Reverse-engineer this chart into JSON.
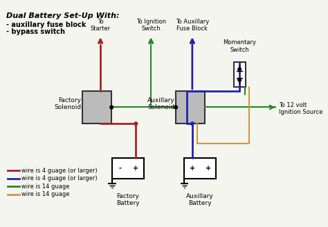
{
  "title": "Dual Battery Set-Up With:",
  "subtitle_lines": [
    "- auxillary fuse block",
    "- bypass switch"
  ],
  "bg_color": "#f5f5f0",
  "wire_colors": {
    "red": "#aa2222",
    "blue": "#2222aa",
    "green": "#228822",
    "orange": "#cc9944"
  },
  "legend": [
    {
      "color": "#aa2222",
      "label": "wire is 4 guage (or larger)"
    },
    {
      "color": "#2222aa",
      "label": "wire is 4 guage (or larger)"
    },
    {
      "color": "#228822",
      "label": "wire is 14 guage"
    },
    {
      "color": "#cc9944",
      "label": "wire is 14 guage"
    }
  ],
  "labels": {
    "to_starter": "To\nStarter",
    "to_ignition": "To Ignition\nSwitch",
    "to_aux_fuse": "To Auxillary\nFuse Block",
    "momentary": "Momentary\nSwitch",
    "factory_solenoid": "Factory\nSolenoid",
    "aux_solenoid": "Auxillary\nSolenoid",
    "to_12v": "To 12 volt\nIgnition Source",
    "factory_battery": "Factory\nBattery",
    "aux_battery": "Auxillary\nBattery"
  }
}
